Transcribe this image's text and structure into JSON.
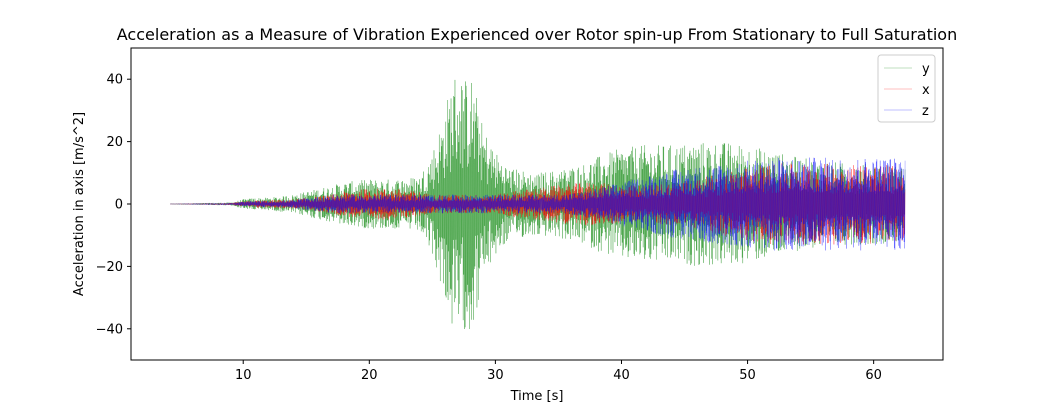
{
  "chart_data": {
    "type": "line",
    "title": "Acceleration as a Measure of Vibration Experienced over Rotor spin-up From Stationary to Full Saturation",
    "xlabel": "Time [s]",
    "ylabel": "Acceleration in axis [m/s^2]",
    "xlim": [
      1.1,
      65.5
    ],
    "ylim": [
      -50,
      50
    ],
    "xticks": [
      10,
      20,
      30,
      40,
      50,
      60
    ],
    "yticks": [
      -40,
      -20,
      0,
      20,
      40
    ],
    "grid": false,
    "legend_position": "top-right",
    "series": [
      {
        "name": "y",
        "color": "#008000",
        "envelope": {
          "time": [
            4.2,
            9,
            10,
            11,
            12,
            14,
            15,
            17,
            18,
            20,
            22,
            24,
            25,
            26,
            26.5,
            27,
            27.5,
            28,
            28.5,
            29,
            30,
            31,
            33,
            35,
            37,
            38,
            40,
            42,
            44,
            46,
            48,
            50,
            52,
            54,
            56,
            58,
            60,
            62.5
          ],
          "amplitude": [
            0.1,
            0.5,
            1.5,
            2,
            2,
            3,
            4,
            6,
            7,
            8,
            8,
            9,
            17,
            30,
            40,
            44,
            40,
            42,
            35,
            25,
            17,
            12,
            10,
            11,
            13,
            15,
            18,
            19,
            19,
            20,
            20,
            19,
            17,
            15,
            14,
            13,
            13,
            12
          ]
        }
      },
      {
        "name": "x",
        "color": "#ff0000",
        "envelope": {
          "time": [
            4.2,
            9,
            10,
            11,
            12,
            14,
            15,
            17,
            18,
            20,
            22,
            24,
            25,
            26,
            26.5,
            27,
            27.5,
            28,
            28.5,
            29,
            30,
            31,
            33,
            35,
            37,
            38,
            40,
            42,
            44,
            46,
            48,
            50,
            52,
            54,
            56,
            58,
            60,
            62.5
          ],
          "amplitude": [
            0.05,
            0.3,
            0.8,
            1.2,
            1.2,
            1.5,
            2,
            3,
            4,
            5,
            5,
            4,
            3,
            3,
            3,
            3,
            3,
            3,
            3,
            3,
            3,
            4,
            5,
            6,
            7,
            7,
            6,
            6,
            7,
            8,
            10,
            12,
            13,
            13,
            13,
            13,
            13,
            12
          ]
        }
      },
      {
        "name": "z",
        "color": "#0000ff",
        "envelope": {
          "time": [
            4.2,
            9,
            10,
            11,
            12,
            14,
            15,
            17,
            18,
            20,
            22,
            24,
            25,
            26,
            26.5,
            27,
            27.5,
            28,
            28.5,
            29,
            30,
            31,
            33,
            35,
            37,
            38,
            40,
            42,
            44,
            46,
            48,
            50,
            52,
            54,
            56,
            58,
            60,
            62.5
          ],
          "amplitude": [
            0.05,
            0.3,
            0.8,
            1,
            1,
            1.3,
            2,
            3,
            3,
            3,
            3,
            3,
            3,
            3,
            3,
            3,
            3,
            3,
            3,
            3,
            3,
            3,
            3,
            3,
            4,
            5,
            7,
            9,
            11,
            12,
            13,
            14,
            15,
            15,
            15,
            15,
            15,
            15
          ]
        }
      }
    ]
  }
}
